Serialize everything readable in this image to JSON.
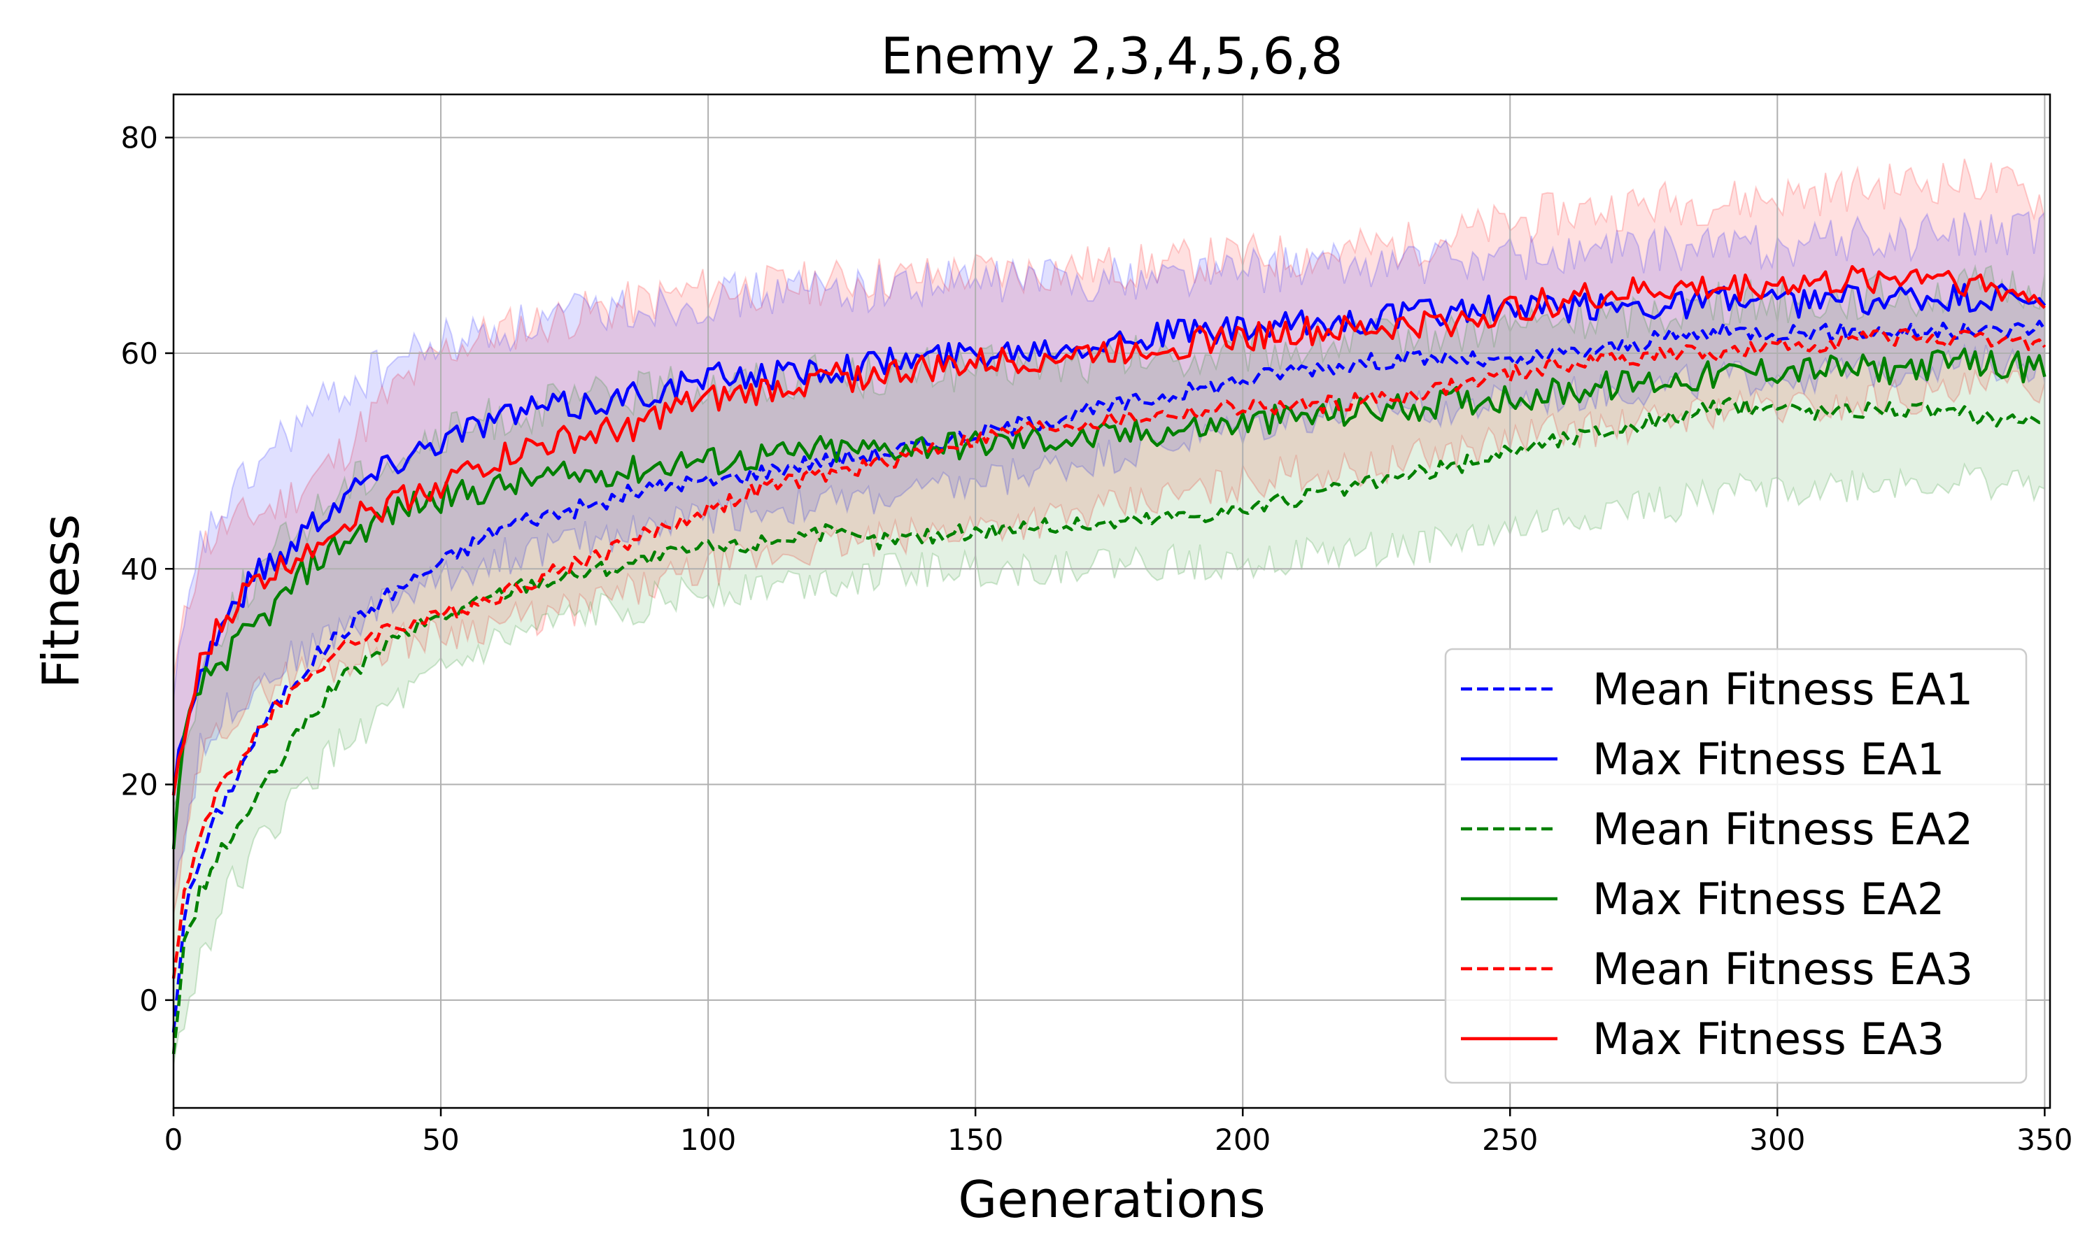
{
  "chart_data": {
    "type": "line",
    "title": "Enemy 2,3,4,5,6,8",
    "xlabel": "Generations",
    "ylabel": "Fitness",
    "xlim": [
      0,
      351
    ],
    "ylim": [
      -10,
      84
    ],
    "xticks": [
      0,
      50,
      100,
      150,
      200,
      250,
      300,
      350
    ],
    "yticks": [
      0,
      20,
      40,
      60,
      80
    ],
    "grid": true,
    "legend_position": "lower-right",
    "series": [
      {
        "name": "Mean Fitness EA1",
        "color": "#0000ff",
        "style": "dashed",
        "x": [
          0,
          2,
          5,
          8,
          12,
          16,
          20,
          25,
          30,
          35,
          40,
          45,
          50,
          55,
          60,
          65,
          70,
          75,
          80,
          85,
          90,
          95,
          100,
          105,
          110,
          115,
          120,
          130,
          140,
          150,
          160,
          170,
          180,
          190,
          200,
          210,
          220,
          230,
          240,
          250,
          260,
          270,
          280,
          290,
          300,
          310,
          320,
          330,
          340,
          350
        ],
        "y": [
          -3,
          8,
          13,
          17,
          21,
          25,
          28,
          31,
          33.5,
          35.5,
          37.5,
          39,
          40.5,
          42,
          43.5,
          44.5,
          45,
          45.5,
          46,
          47,
          47.5,
          48,
          48,
          48.5,
          49,
          49.5,
          50,
          50.5,
          51.5,
          52.5,
          53.5,
          54.5,
          55.5,
          56.5,
          57.5,
          58.5,
          59,
          59.5,
          59.5,
          59,
          60,
          60.5,
          61.5,
          62,
          62,
          62,
          62,
          62,
          62,
          62.5
        ]
      },
      {
        "name": "Max Fitness EA1",
        "color": "#0000ff",
        "style": "solid",
        "x": [
          0,
          2,
          5,
          8,
          12,
          16,
          20,
          25,
          30,
          35,
          40,
          45,
          50,
          55,
          60,
          65,
          70,
          75,
          80,
          85,
          90,
          95,
          100,
          105,
          110,
          115,
          120,
          130,
          140,
          150,
          160,
          170,
          180,
          190,
          200,
          210,
          220,
          230,
          240,
          250,
          260,
          270,
          280,
          290,
          300,
          310,
          320,
          330,
          340,
          350
        ],
        "y": [
          19,
          26,
          30,
          34,
          37,
          40,
          41,
          44,
          46,
          48,
          49.5,
          51,
          52,
          53,
          54,
          54.5,
          55,
          55,
          55.5,
          56,
          56.5,
          57,
          57.5,
          58,
          58,
          58,
          58.5,
          59,
          59.5,
          60,
          60.5,
          61,
          61.5,
          62,
          62,
          62.5,
          63,
          63.5,
          64,
          64,
          64,
          64.5,
          64.5,
          65,
          64.5,
          65,
          65,
          65,
          65,
          65
        ]
      },
      {
        "name": "Mean Fitness EA2",
        "color": "#008000",
        "style": "dashed",
        "x": [
          0,
          2,
          5,
          8,
          12,
          16,
          20,
          25,
          30,
          35,
          40,
          45,
          50,
          55,
          60,
          65,
          70,
          75,
          80,
          85,
          90,
          95,
          100,
          105,
          110,
          115,
          120,
          130,
          140,
          150,
          160,
          170,
          180,
          190,
          200,
          210,
          220,
          230,
          240,
          250,
          260,
          270,
          280,
          290,
          300,
          310,
          320,
          330,
          340,
          350
        ],
        "y": [
          -5,
          5,
          10,
          13,
          16,
          19,
          22,
          26,
          29,
          31,
          33,
          34.5,
          35.5,
          36.5,
          37.5,
          38.5,
          39,
          39.5,
          40,
          40.5,
          41,
          41.5,
          42,
          42,
          42.5,
          43,
          43.5,
          42.5,
          43,
          43.5,
          44,
          44,
          44.5,
          45,
          45.5,
          46.5,
          47.5,
          48.5,
          49.5,
          51,
          52,
          53,
          54,
          55,
          55,
          54.5,
          55,
          54.5,
          54,
          54
        ]
      },
      {
        "name": "Max Fitness EA2",
        "color": "#008000",
        "style": "solid",
        "x": [
          0,
          2,
          5,
          8,
          12,
          16,
          20,
          25,
          30,
          35,
          40,
          45,
          50,
          55,
          60,
          65,
          70,
          75,
          80,
          85,
          90,
          95,
          100,
          105,
          110,
          115,
          120,
          130,
          140,
          150,
          160,
          170,
          180,
          190,
          200,
          210,
          220,
          230,
          240,
          250,
          260,
          270,
          280,
          290,
          300,
          310,
          320,
          330,
          340,
          350
        ],
        "y": [
          14,
          24,
          29,
          31,
          33,
          35,
          37,
          40,
          42,
          43.5,
          45,
          46,
          46.5,
          47,
          47.5,
          48,
          48.5,
          48.5,
          49,
          49,
          49.5,
          50,
          50,
          50,
          50.5,
          50.5,
          51,
          51,
          51.5,
          51.5,
          52,
          52,
          52.5,
          53,
          53.5,
          54,
          54.5,
          55,
          55.5,
          56,
          56.5,
          57,
          57.5,
          58,
          58.5,
          58.5,
          58.5,
          59,
          59,
          58.5
        ]
      },
      {
        "name": "Mean Fitness EA3",
        "color": "#ff0000",
        "style": "dashed",
        "x": [
          0,
          2,
          5,
          8,
          12,
          16,
          20,
          25,
          30,
          35,
          40,
          45,
          50,
          55,
          60,
          65,
          70,
          75,
          80,
          85,
          90,
          95,
          100,
          105,
          110,
          115,
          120,
          130,
          140,
          150,
          160,
          170,
          180,
          190,
          200,
          210,
          220,
          230,
          240,
          250,
          260,
          270,
          280,
          290,
          300,
          310,
          320,
          330,
          340,
          350
        ],
        "y": [
          2,
          10,
          15,
          19,
          22,
          25,
          27.5,
          30,
          32,
          33.5,
          34.5,
          35,
          35.5,
          36.5,
          37.5,
          38.5,
          39.5,
          40.5,
          41.5,
          42.5,
          43.5,
          44.5,
          45.5,
          46.5,
          47.5,
          48,
          48.5,
          49.5,
          51,
          52,
          53,
          53.5,
          54,
          54.5,
          55,
          55,
          55.5,
          56,
          57,
          58,
          59,
          59.5,
          60,
          60,
          60.5,
          61,
          61.5,
          61.5,
          61,
          61
        ]
      },
      {
        "name": "Max Fitness EA3",
        "color": "#ff0000",
        "style": "solid",
        "x": [
          0,
          2,
          5,
          8,
          12,
          16,
          20,
          25,
          30,
          35,
          40,
          45,
          50,
          55,
          60,
          65,
          70,
          75,
          80,
          85,
          90,
          95,
          100,
          105,
          110,
          115,
          120,
          130,
          140,
          150,
          160,
          170,
          180,
          190,
          200,
          210,
          220,
          230,
          240,
          250,
          260,
          270,
          280,
          290,
          300,
          310,
          320,
          330,
          340,
          350
        ],
        "y": [
          19,
          24,
          31,
          34,
          37,
          39,
          40,
          42,
          44,
          45,
          46,
          47,
          48,
          49,
          50,
          51,
          51.5,
          52,
          52.5,
          53,
          54,
          55,
          55.5,
          56,
          56.5,
          57,
          57.5,
          58,
          58.5,
          59,
          59.5,
          60,
          60.5,
          61,
          61.5,
          62,
          62,
          62.5,
          63,
          64,
          65,
          65.5,
          66,
          66,
          66.5,
          66.5,
          67,
          67.5,
          66,
          65
        ]
      }
    ],
    "bands": [
      {
        "color": "#ff0000",
        "opacity": 0.12,
        "x": [
          0,
          5,
          10,
          20,
          30,
          40,
          50,
          60,
          70,
          80,
          90,
          100,
          110,
          120,
          130,
          140,
          150,
          160,
          170,
          180,
          190,
          200,
          210,
          220,
          230,
          240,
          250,
          260,
          270,
          280,
          290,
          300,
          310,
          320,
          330,
          340,
          350
        ],
        "lower": [
          8,
          22,
          26,
          30,
          31,
          33,
          34,
          35,
          35.5,
          37,
          38.5,
          40,
          41,
          42,
          42.5,
          43,
          44,
          44.5,
          45,
          46,
          47,
          48,
          49,
          49,
          50,
          51,
          52,
          53,
          53,
          54,
          55,
          55,
          55,
          56,
          56,
          57,
          57
        ],
        "upper": [
          30,
          42,
          44,
          46,
          50,
          56,
          60,
          62,
          63,
          64,
          65,
          66,
          66,
          66.5,
          67,
          67,
          67.5,
          67.5,
          68,
          68,
          68.5,
          69,
          69,
          69.5,
          70,
          71,
          72,
          73,
          73.5,
          74,
          74,
          74.5,
          75,
          75.5,
          76,
          76,
          74
        ]
      },
      {
        "color": "#0000ff",
        "opacity": 0.12,
        "x": [
          0,
          5,
          10,
          20,
          30,
          40,
          50,
          60,
          70,
          80,
          90,
          100,
          110,
          120,
          130,
          140,
          150,
          160,
          170,
          180,
          190,
          200,
          210,
          220,
          230,
          240,
          250,
          260,
          270,
          280,
          290,
          300,
          310,
          320,
          330,
          340,
          350
        ],
        "lower": [
          10,
          23,
          27,
          31,
          34,
          37,
          39,
          41,
          42,
          43,
          44,
          45,
          45.5,
          46,
          46.5,
          47,
          48,
          49,
          50,
          51,
          52,
          53,
          54,
          54.5,
          55,
          55,
          55.5,
          56,
          56.5,
          57,
          57.5,
          58,
          58,
          58.5,
          59,
          59,
          59
        ],
        "upper": [
          28,
          42,
          46,
          52,
          56,
          59,
          61,
          62,
          63,
          64,
          64.5,
          65,
          65.5,
          66,
          66,
          66.5,
          66.5,
          67,
          67,
          67,
          67.5,
          67.5,
          68,
          68,
          68.5,
          68.5,
          69,
          69,
          69.5,
          69.5,
          70,
          70,
          70.5,
          70.5,
          71,
          71,
          71
        ]
      },
      {
        "color": "#008000",
        "opacity": 0.11,
        "x": [
          0,
          5,
          10,
          20,
          30,
          40,
          50,
          60,
          70,
          80,
          90,
          100,
          110,
          120,
          130,
          140,
          150,
          160,
          170,
          180,
          190,
          200,
          210,
          220,
          230,
          240,
          250,
          260,
          270,
          280,
          290,
          300,
          310,
          320,
          330,
          340,
          350
        ],
        "lower": [
          -6,
          4,
          10,
          17,
          23,
          27,
          30,
          33,
          34.5,
          36,
          37,
          38,
          38.5,
          39,
          39.5,
          40,
          40,
          40,
          40.5,
          40.5,
          40.5,
          41,
          41,
          41.5,
          42,
          42.5,
          43.5,
          44.5,
          45.5,
          46,
          47,
          47.5,
          47.5,
          48,
          48,
          48,
          47.5
        ],
        "upper": [
          18,
          30,
          36,
          42,
          47,
          50,
          52,
          54,
          55,
          56,
          56.5,
          57,
          57.5,
          58,
          58,
          58.5,
          58.5,
          59,
          59,
          59.5,
          59.5,
          60,
          60.5,
          61,
          61.5,
          62,
          62.5,
          63,
          63.5,
          64,
          64.5,
          65,
          65,
          65.5,
          65.5,
          66,
          66
        ]
      }
    ]
  }
}
